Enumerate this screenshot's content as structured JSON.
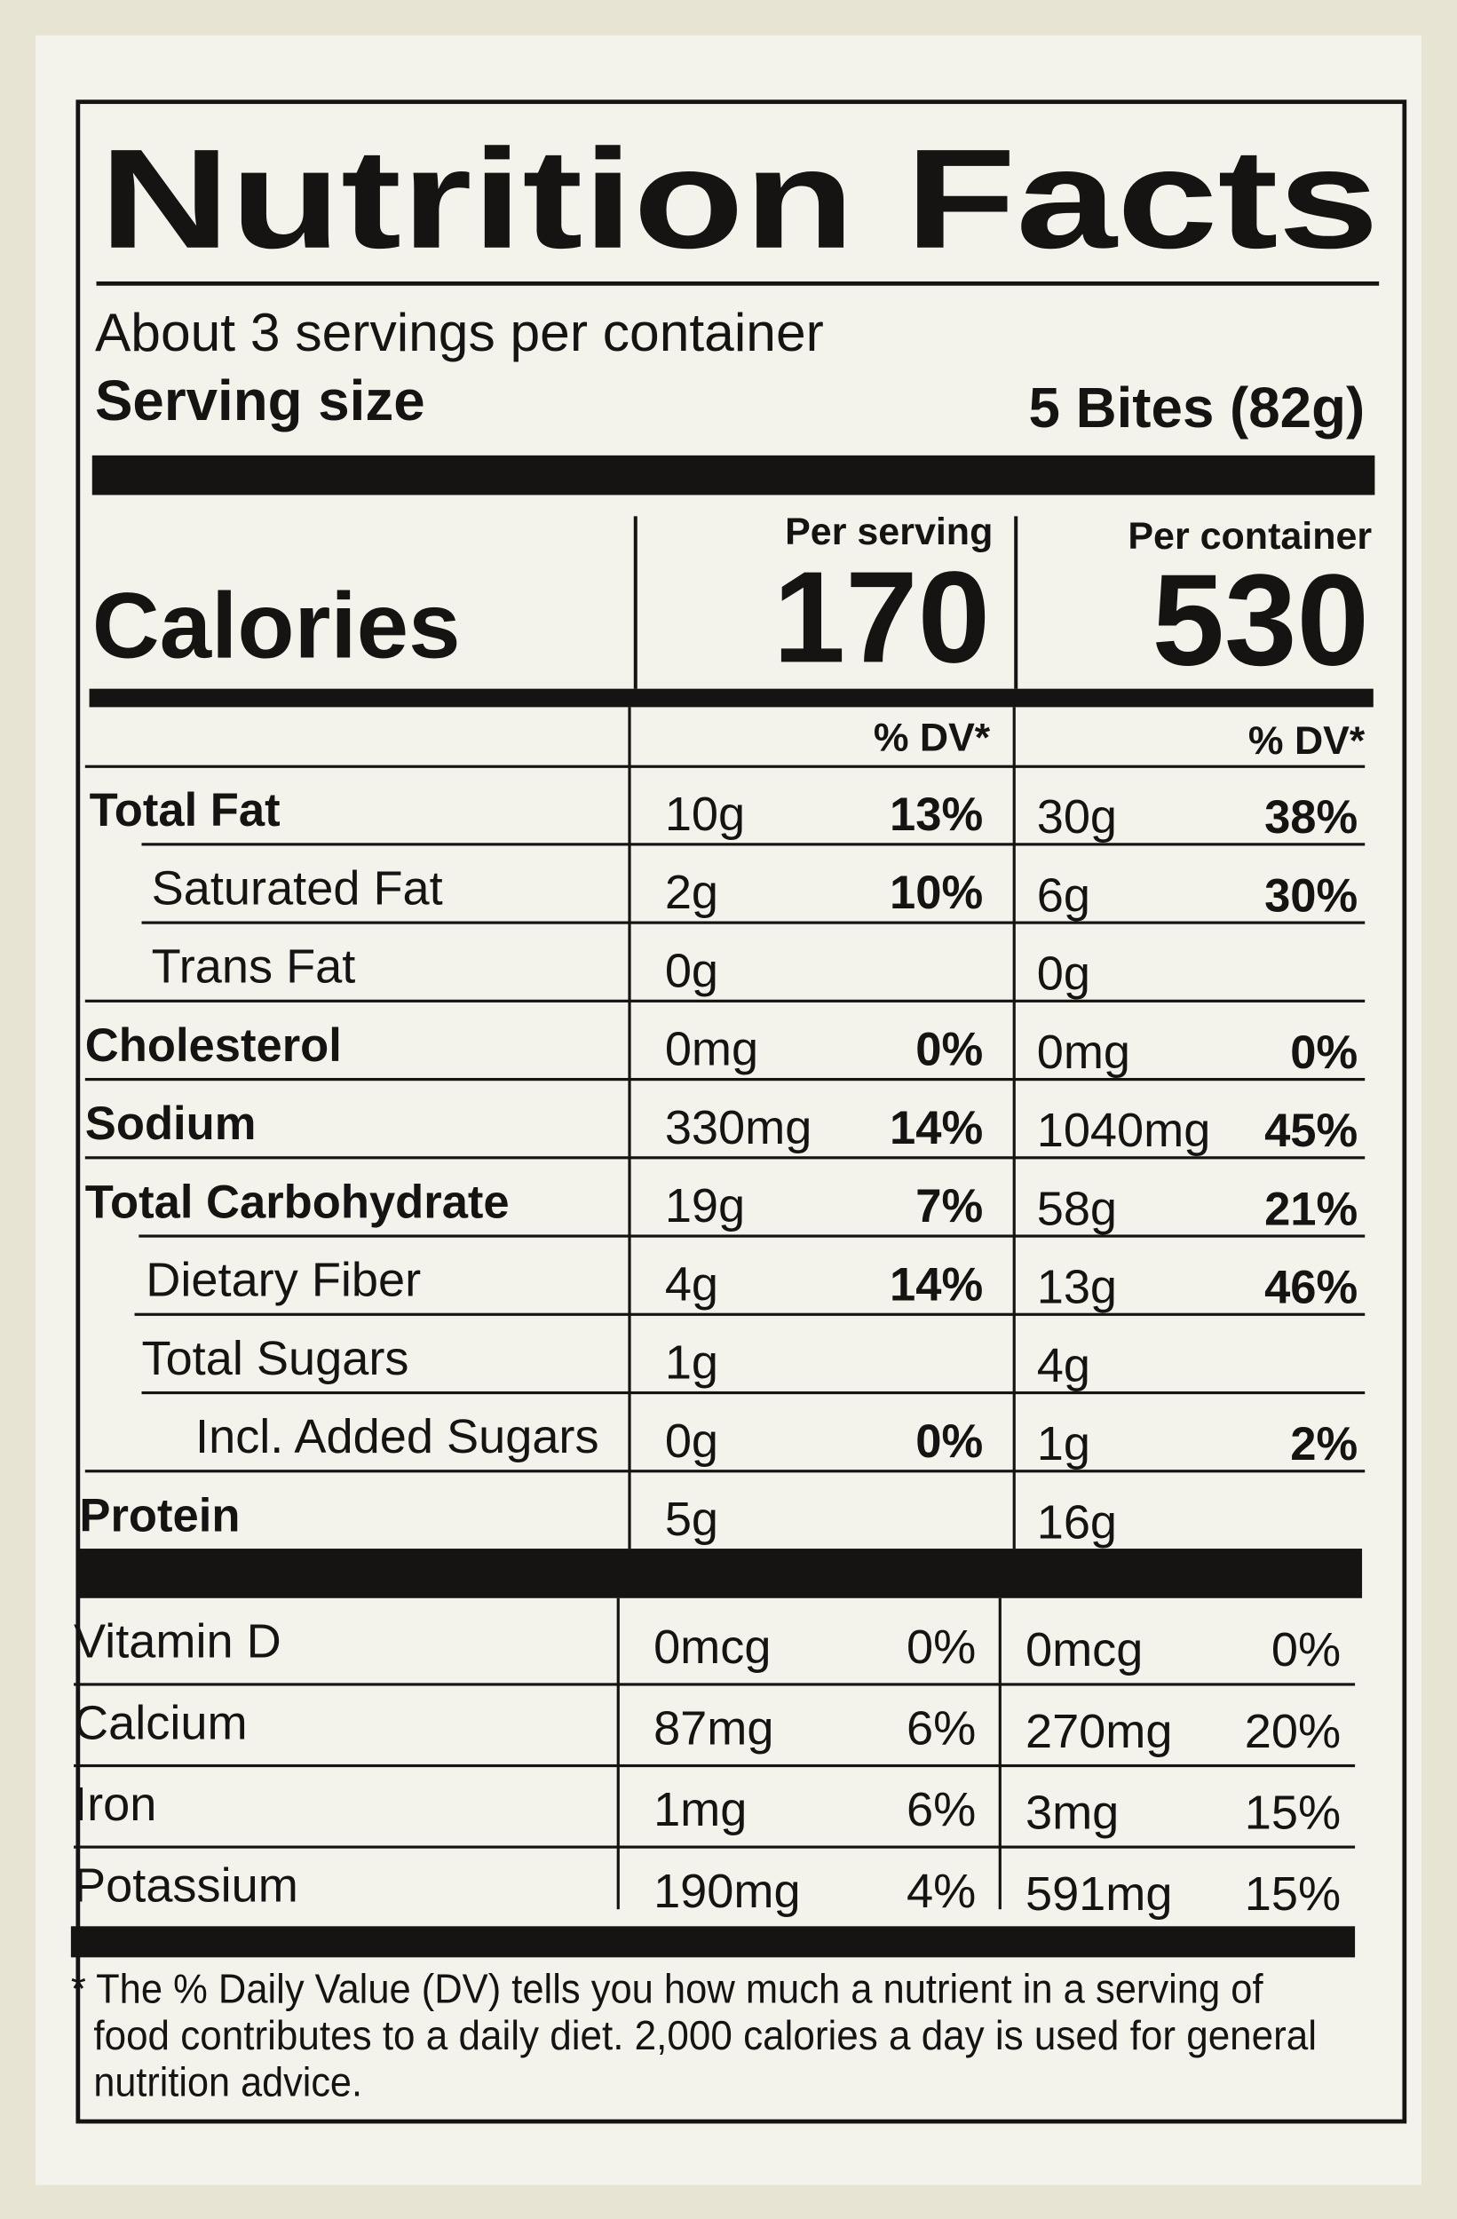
{
  "title": "Nutrition Facts",
  "servings_per_container": "About 3 servings per container",
  "serving_size": {
    "label": "Serving size",
    "value": "5 Bites (82g)"
  },
  "calories": {
    "label": "Calories",
    "per_serving_header": "Per serving",
    "per_container_header": "Per container",
    "per_serving": 170,
    "per_container": 530
  },
  "dv_headers": [
    "% DV*",
    "% DV*"
  ],
  "nutrients": [
    {
      "name": "Total Fat",
      "serving_amount": "10g",
      "serving_dv": "13%",
      "container_amount": "30g",
      "container_dv": "38%"
    },
    {
      "name": "Saturated Fat",
      "serving_amount": "2g",
      "serving_dv": "10%",
      "container_amount": "6g",
      "container_dv": "30%"
    },
    {
      "name": "Trans Fat",
      "serving_amount": "0g",
      "container_amount": "0g"
    },
    {
      "name": "Cholesterol",
      "serving_amount": "0mg",
      "serving_dv": "0%",
      "container_amount": "0mg",
      "container_dv": "0%"
    },
    {
      "name": "Sodium",
      "serving_amount": "330mg",
      "serving_dv": "14%",
      "container_amount": "1040mg",
      "container_dv": "45%"
    },
    {
      "name": "Total Carbohydrate",
      "serving_amount": "19g",
      "serving_dv": "7%",
      "container_amount": "58g",
      "container_dv": "21%"
    },
    {
      "name": "Dietary Fiber",
      "serving_amount": "4g",
      "serving_dv": "14%",
      "container_amount": "13g",
      "container_dv": "46%"
    },
    {
      "name": "Total Sugars",
      "serving_amount": "1g",
      "container_amount": "4g"
    },
    {
      "name": "Incl. Added Sugars",
      "serving_amount": "0g",
      "serving_dv": "0%",
      "container_amount": "1g",
      "container_dv": "2%"
    },
    {
      "name": "Protein",
      "serving_amount": "5g",
      "container_amount": "16g"
    }
  ],
  "vitamins": [
    {
      "name": "Vitamin D",
      "serving_amount": "0mcg",
      "serving_dv": "0%",
      "container_amount": "0mcg",
      "container_dv": "0%"
    },
    {
      "name": "Calcium",
      "serving_amount": "87mg",
      "serving_dv": "6%",
      "container_amount": "270mg",
      "container_dv": "20%"
    },
    {
      "name": "Iron",
      "serving_amount": "1mg",
      "serving_dv": "6%",
      "container_amount": "3mg",
      "container_dv": "15%"
    },
    {
      "name": "Potassium",
      "serving_amount": "190mg",
      "serving_dv": "4%",
      "container_amount": "591mg",
      "container_dv": "15%"
    }
  ],
  "footnote": [
    "* The % Daily Value (DV) tells you how much a nutrient in a serving of",
    "food contributes to a daily diet. 2,000 calories a day is used for general",
    "nutrition advice."
  ]
}
